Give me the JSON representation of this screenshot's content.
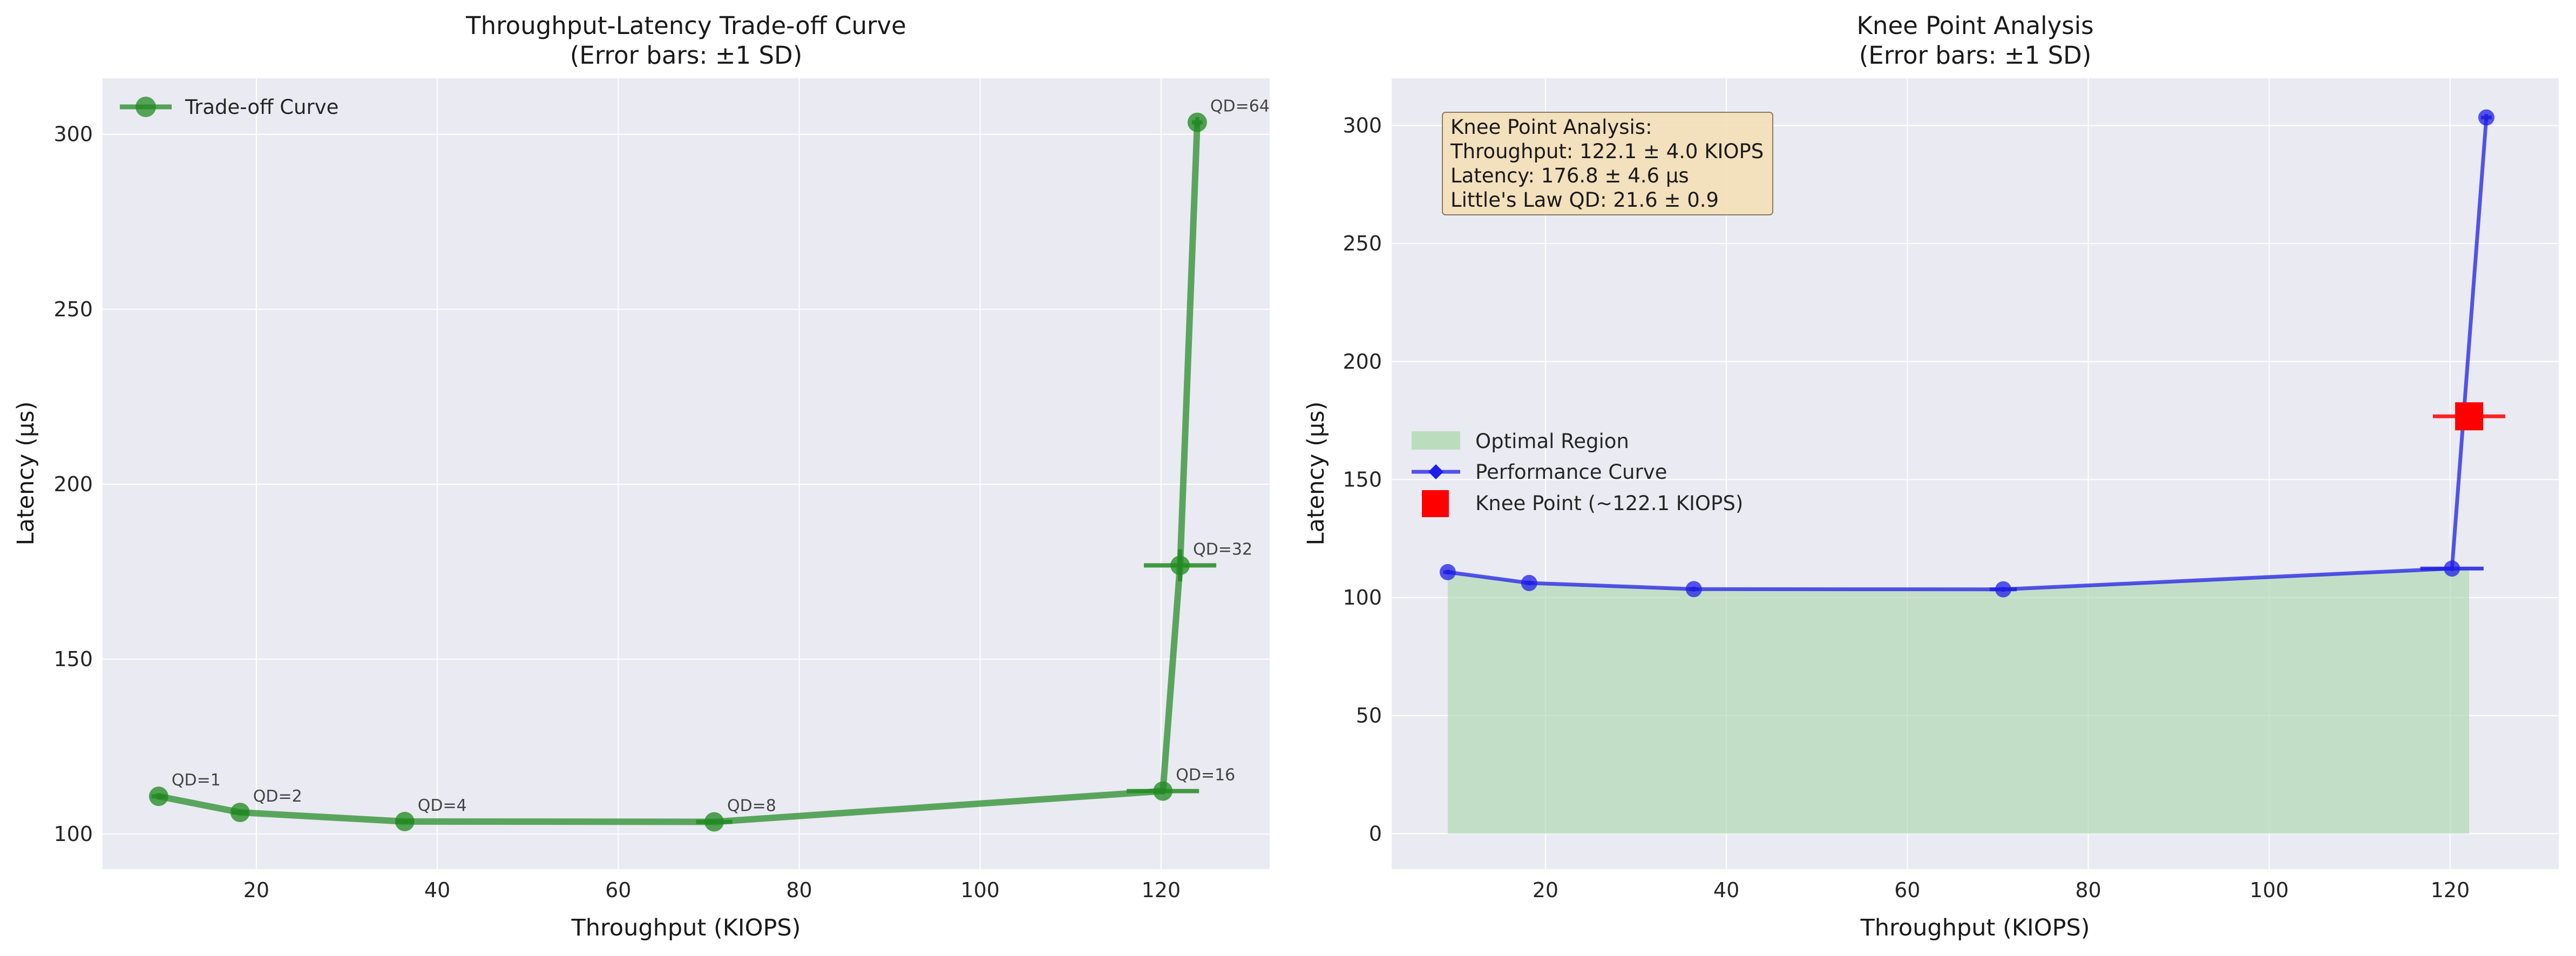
{
  "colors": {
    "plot_bg": "#eaeaf2",
    "grid": "#ffffff",
    "green": "#228b22",
    "blue": "#1f1fe6",
    "red": "#ff0000",
    "region_fill": "#a8d5a8",
    "info_bg": "#f5deb3",
    "info_border": "#8a7a60"
  },
  "chart_data": [
    {
      "type": "line",
      "title": "Throughput-Latency Trade-off Curve",
      "subtitle": "(Error bars: ±1 SD)",
      "xlabel": "Throughput (KIOPS)",
      "ylabel": "Latency (μs)",
      "xlim": [
        3,
        132
      ],
      "ylim": [
        90,
        316
      ],
      "xticks": [
        20,
        40,
        60,
        80,
        100,
        120
      ],
      "yticks": [
        100,
        150,
        200,
        250,
        300
      ],
      "grid": true,
      "legend_position": "top-left",
      "legend": [
        "Trade-off Curve"
      ],
      "series": [
        {
          "name": "Trade-off Curve",
          "color": "green",
          "x": [
            9.2,
            18.2,
            36.4,
            70.6,
            120.2,
            122.1,
            124.0
          ],
          "y": [
            110.8,
            106.2,
            103.6,
            103.5,
            112.3,
            176.8,
            303.4
          ],
          "xerr": [
            0.8,
            0.9,
            1.0,
            2.0,
            4.0,
            4.0,
            0.6
          ],
          "yerr": [
            0.9,
            0.8,
            0.6,
            0.6,
            0.9,
            4.6,
            1.5
          ],
          "labels": [
            "QD=1",
            "QD=2",
            "QD=4",
            "QD=8",
            "QD=16",
            "QD=32",
            "QD=64"
          ]
        }
      ]
    },
    {
      "type": "line",
      "title": "Knee Point Analysis",
      "subtitle": "(Error bars: ±1 SD)",
      "xlabel": "Throughput (KIOPS)",
      "ylabel": "Latency (μs)",
      "xlim": [
        3,
        132
      ],
      "ylim": [
        -15,
        320
      ],
      "xticks": [
        20,
        40,
        60,
        80,
        100,
        120
      ],
      "yticks": [
        0,
        50,
        100,
        150,
        200,
        250,
        300
      ],
      "grid": true,
      "legend_position": "center-left",
      "legend": [
        "Optimal Region",
        "Performance Curve",
        "Knee Point (~122.1 KIOPS)"
      ],
      "series": [
        {
          "name": "Performance Curve",
          "color": "blue",
          "x": [
            9.2,
            18.2,
            36.4,
            70.6,
            120.2,
            124.0
          ],
          "y": [
            110.8,
            106.2,
            103.6,
            103.5,
            112.3,
            303.4
          ],
          "xerr": [
            0.5,
            0.5,
            0.5,
            1.5,
            3.5,
            0.6
          ],
          "yerr": [
            1.0,
            1.0,
            1.0,
            1.0,
            1.0,
            1.5
          ]
        },
        {
          "name": "Knee Point (~122.1 KIOPS)",
          "color": "red",
          "x": [
            122.1
          ],
          "y": [
            176.8
          ],
          "xerr": [
            4.0
          ],
          "yerr": [
            4.6
          ]
        }
      ],
      "region": {
        "name": "Optimal Region",
        "x": [
          9.2,
          18.2,
          36.4,
          70.6,
          120.2,
          122.1
        ],
        "y": [
          110.8,
          106.2,
          103.6,
          103.5,
          112.3,
          112.3
        ]
      },
      "info_box": {
        "lines": [
          "Knee Point Analysis:",
          "Throughput: 122.1 ± 4.0 KIOPS",
          "Latency: 176.8 ± 4.6 μs",
          "Little's Law QD: 21.6 ± 0.9"
        ]
      }
    }
  ]
}
